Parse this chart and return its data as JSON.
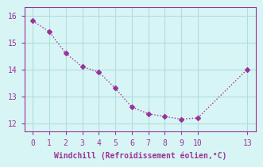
{
  "x": [
    0,
    1,
    2,
    3,
    4,
    5,
    6,
    7,
    8,
    9,
    10,
    13
  ],
  "y": [
    15.8,
    15.4,
    14.6,
    14.1,
    13.9,
    13.3,
    12.6,
    12.35,
    12.25,
    12.15,
    12.2,
    14.0
  ],
  "line_color": "#993399",
  "marker_style": "D",
  "marker_size": 3,
  "background_color": "#d8f5f5",
  "grid_color": "#b0dede",
  "xlabel": "Windchill (Refroidissement éolien,°C)",
  "xlabel_color": "#993399",
  "tick_color": "#993399",
  "xlim": [
    -0.5,
    13.5
  ],
  "ylim": [
    11.7,
    16.3
  ],
  "yticks": [
    12,
    13,
    14,
    15,
    16
  ],
  "xticks": [
    0,
    1,
    2,
    3,
    4,
    5,
    6,
    7,
    8,
    9,
    10,
    13
  ]
}
